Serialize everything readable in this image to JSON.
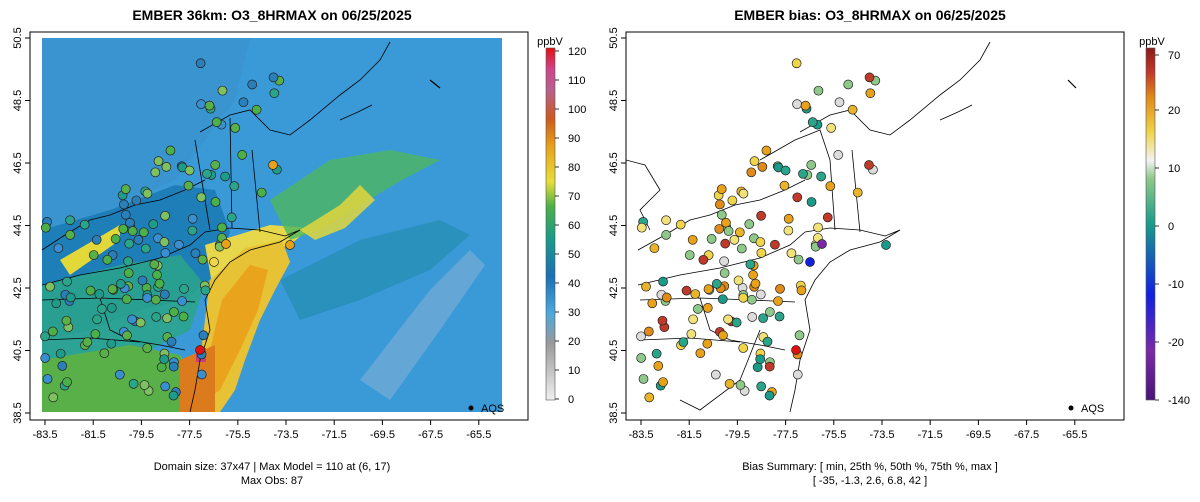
{
  "panels": [
    {
      "id": "model",
      "title": "EMBER 36km: O3_8HRMAX on 06/25/2025",
      "chart_data": {
        "type": "heatmap",
        "x_ticks": [
          "-83.5",
          "-81.5",
          "-79.5",
          "-77.5",
          "-75.5",
          "-73.5",
          "-71.5",
          "-69.5",
          "-67.5",
          "-65.5"
        ],
        "y_ticks": [
          "38.5",
          "40.5",
          "42.5",
          "44.5",
          "46.5",
          "48.5",
          "50.5"
        ],
        "xlim": [
          -84.5,
          -65.0
        ],
        "ylim": [
          38.5,
          50.5
        ],
        "colorbar": {
          "unit": "ppbV",
          "ticks": [
            "0",
            "10",
            "20",
            "30",
            "40",
            "50",
            "60",
            "70",
            "80",
            "90",
            "100",
            "110",
            "120"
          ],
          "range": [
            0,
            120
          ]
        },
        "legend": {
          "label": "AQS"
        },
        "footer_lines": [
          "Domain size: 37x47 | Max Model = 110 at (6, 17)",
          "Max Obs: 87"
        ]
      }
    },
    {
      "id": "bias",
      "title": "EMBER bias: O3_8HRMAX on 06/25/2025",
      "chart_data": {
        "type": "scatter",
        "x_ticks": [
          "-83.5",
          "-81.5",
          "-79.5",
          "-77.5",
          "-75.5",
          "-73.5",
          "-71.5",
          "-69.5",
          "-67.5",
          "-65.5"
        ],
        "y_ticks": [
          "38.5",
          "40.5",
          "42.5",
          "44.5",
          "46.5",
          "48.5",
          "50.5"
        ],
        "xlim": [
          -84.5,
          -65.0
        ],
        "ylim": [
          38.5,
          50.5
        ],
        "colorbar": {
          "unit": "ppbV",
          "ticks": [
            "70",
            "20",
            "10",
            "0",
            "-10",
            "-20",
            "-140"
          ],
          "range": [
            -140,
            70
          ]
        },
        "legend": {
          "label": "AQS"
        },
        "summary": {
          "min": -35,
          "p25": -1.3,
          "p50": 2.6,
          "p75": 6.8,
          "max": 42
        },
        "footer_lines": [
          "Bias Summary: [ min, 25th %, 50th %, 75th %, max ]",
          "[ -35,   -1.3,   2.6,   6.8,   42 ]"
        ]
      }
    }
  ]
}
